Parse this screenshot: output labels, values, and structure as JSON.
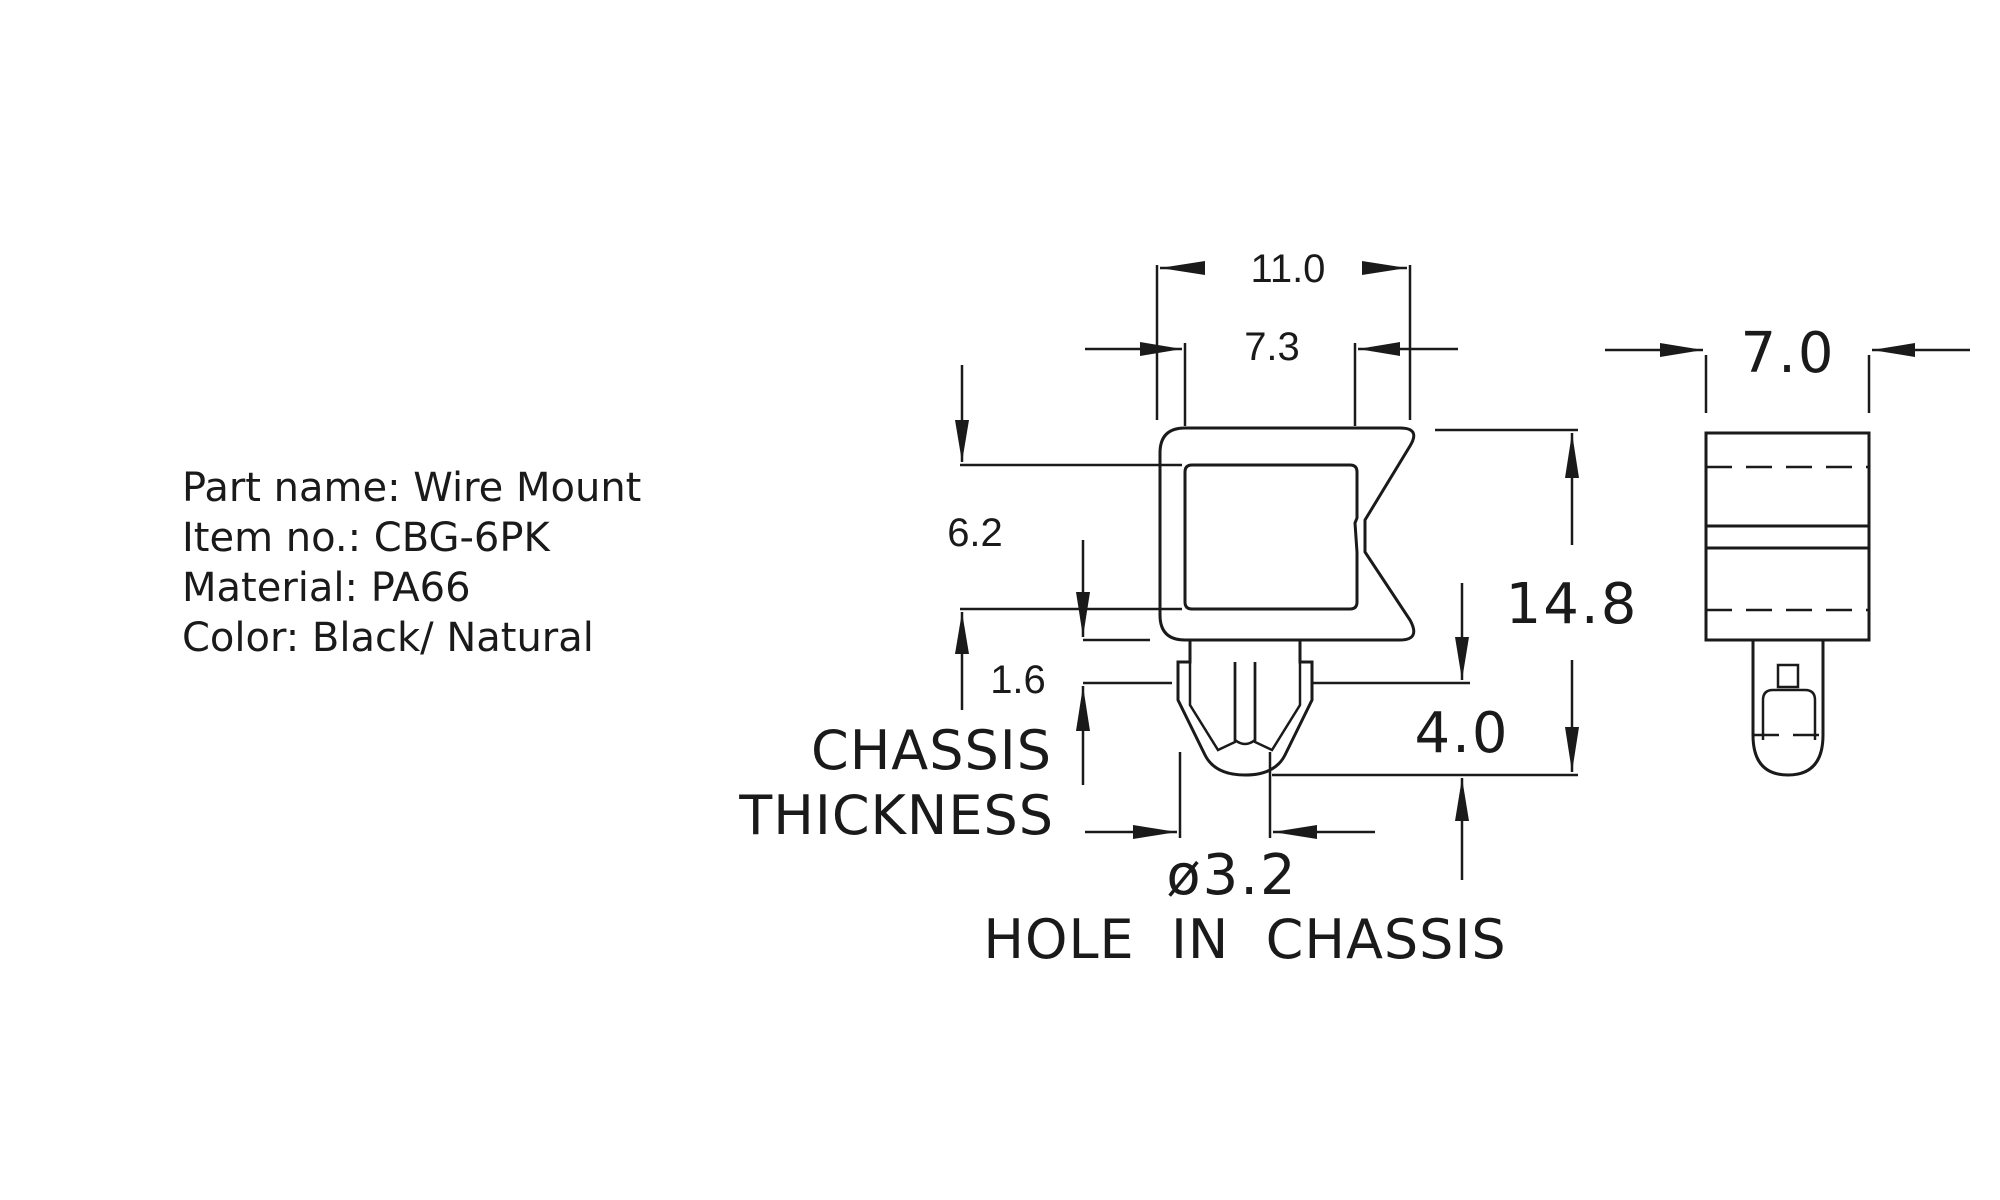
{
  "specs": {
    "part_name": "Part name: Wire Mount",
    "item_no": "Item no.: CBG-6PK",
    "material": "Material: PA66",
    "color": "Color: Black/ Natural"
  },
  "dimensions": {
    "overall_width": "11.0",
    "slot_width": "7.3",
    "side_width": "7.0",
    "opening": "6.2",
    "overall_height": "14.8",
    "base_thickness": "1.6",
    "post_length": "4.0",
    "hole_diameter": "ø3.2"
  },
  "labels": {
    "chassis": "CHASSIS",
    "thickness": "THICKNESS",
    "hole_in_chassis": "HOLE  IN  CHASSIS"
  }
}
